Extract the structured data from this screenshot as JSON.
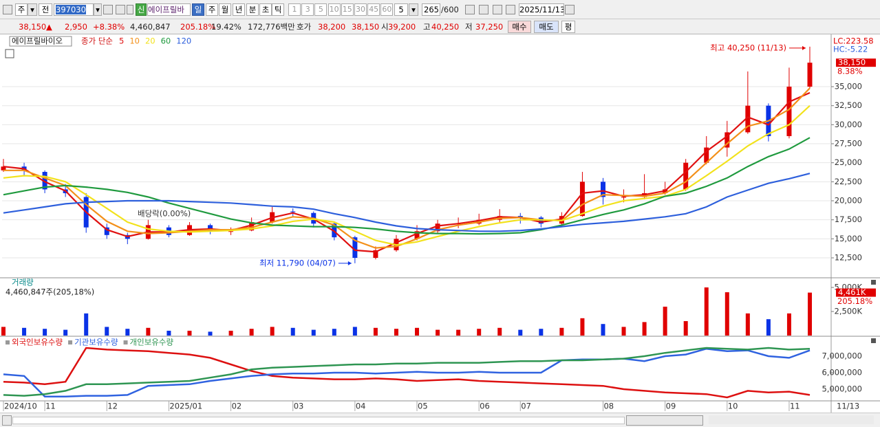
{
  "toolbar": {
    "market": "주",
    "scope": "전",
    "code": "397030",
    "badge": "신",
    "name": "에이프릴바",
    "periods": [
      "일",
      "주",
      "월",
      "년",
      "분",
      "초",
      "틱"
    ],
    "intervals": [
      "1",
      "3",
      "5",
      "10",
      "15",
      "30",
      "45",
      "60"
    ],
    "interval_value": "5",
    "count": "265",
    "count_max": "/600",
    "date": "2025/11/13"
  },
  "quote_bar": {
    "price": "38,150",
    "arrow": "▲",
    "change": "2,950",
    "change_rate": "+8.38%",
    "volume": "4,460,847",
    "volume_ratio": "205.18%",
    "turnover": "19.42%",
    "amount": "172,776백만",
    "quote_label": "호가",
    "ask": "38,200",
    "bid": "38,150",
    "open_label": "시",
    "open": "39,200",
    "high_label": "고",
    "high": "40,250",
    "low_label": "저",
    "low": "37,250",
    "buy": "매수",
    "sell": "매도",
    "avg": "평"
  },
  "chart_data": [
    {
      "type": "candlestick",
      "title": "에이프릴바이오",
      "ma_label": "종가 단순",
      "up_color": "#e00000",
      "down_color": "#0a32e6",
      "grid": true,
      "ylim": [
        9970,
        41690
      ],
      "yticks": [
        {
          "value": 12500,
          "label": "12,500"
        },
        {
          "value": 15000,
          "label": "15,000"
        },
        {
          "value": 17500,
          "label": "17,500"
        },
        {
          "value": 20000,
          "label": "20,000"
        },
        {
          "value": 22500,
          "label": "22,500"
        },
        {
          "value": 25000,
          "label": "25,000"
        },
        {
          "value": 27500,
          "label": "27,500"
        },
        {
          "value": 30000,
          "label": "30,000"
        },
        {
          "value": 32500,
          "label": "32,500"
        },
        {
          "value": 35000,
          "label": "35,000"
        }
      ],
      "open": [
        24000,
        24500,
        23800,
        21500,
        20500,
        16500,
        15500,
        15000,
        16500,
        15500,
        16800,
        16000,
        16100,
        17200,
        18600,
        18400,
        17000,
        15200,
        12500,
        13500,
        15000,
        16000,
        17000,
        17000,
        17500,
        18000,
        17800,
        17000,
        18000,
        22500,
        20500,
        20500,
        21000,
        21500,
        25000,
        27000,
        29000,
        32500,
        28500,
        35000
      ],
      "high": [
        25500,
        25000,
        24000,
        22200,
        21000,
        17000,
        15800,
        17500,
        16800,
        17200,
        17000,
        16500,
        17800,
        19200,
        19000,
        18600,
        17200,
        15400,
        14000,
        15500,
        16800,
        17500,
        17800,
        18300,
        18900,
        18400,
        18000,
        18500,
        23800,
        23000,
        21500,
        23500,
        22500,
        25500,
        28500,
        30500,
        37000,
        32800,
        37500,
        40250
      ],
      "low": [
        23800,
        23200,
        21000,
        20500,
        15800,
        15000,
        14300,
        14900,
        15200,
        15400,
        15600,
        15500,
        16000,
        17000,
        17800,
        16500,
        14800,
        11790,
        12300,
        13300,
        14800,
        15800,
        16400,
        16800,
        17200,
        17000,
        16500,
        16800,
        17900,
        19500,
        19800,
        20200,
        20800,
        21300,
        24800,
        25800,
        28800,
        27800,
        28200,
        34800
      ],
      "close": [
        24500,
        24000,
        21500,
        21000,
        16500,
        15500,
        15000,
        16800,
        15500,
        16800,
        16000,
        16000,
        17200,
        18500,
        18500,
        17000,
        15200,
        12500,
        13500,
        15000,
        16000,
        17000,
        17000,
        17500,
        18000,
        17800,
        17000,
        18000,
        22500,
        20500,
        20500,
        21000,
        21500,
        25000,
        27000,
        29000,
        32500,
        28500,
        35000,
        38150
      ],
      "series": [
        {
          "name": "5",
          "color": "#e01010",
          "values": [
            24500,
            24200,
            22500,
            21300,
            18500,
            16200,
            15300,
            15900,
            15900,
            16200,
            16300,
            16100,
            16800,
            17800,
            18400,
            17600,
            16000,
            13500,
            13300,
            14500,
            15700,
            16700,
            17000,
            17400,
            17900,
            17800,
            17200,
            17600,
            21000,
            21300,
            20600,
            20800,
            21300,
            23800,
            26500,
            28500,
            31000,
            30000,
            33000,
            34200
          ]
        },
        {
          "name": "10",
          "color": "#f39019",
          "values": [
            24000,
            24000,
            23000,
            22000,
            19500,
            17300,
            16000,
            15700,
            15800,
            16000,
            16200,
            16200,
            16500,
            17200,
            17900,
            17700,
            16800,
            14800,
            13800,
            14000,
            15000,
            16200,
            16800,
            17200,
            17700,
            17800,
            17500,
            17400,
            19500,
            20800,
            20700,
            20600,
            21000,
            22500,
            25000,
            27500,
            29800,
            30500,
            32000,
            34800
          ]
        },
        {
          "name": "20",
          "color": "#f2e21c",
          "values": [
            23000,
            23300,
            23200,
            22500,
            20800,
            19000,
            17200,
            16300,
            16000,
            15900,
            16000,
            16100,
            16300,
            16700,
            17300,
            17600,
            17200,
            16000,
            14800,
            14200,
            14600,
            15300,
            16000,
            16600,
            17100,
            17500,
            17500,
            17400,
            18300,
            19300,
            20000,
            20300,
            20600,
            21500,
            23300,
            25200,
            27200,
            28800,
            30000,
            32500
          ]
        },
        {
          "name": "60",
          "color": "#1f9a3e",
          "values": [
            20800,
            21300,
            21800,
            22000,
            21800,
            21500,
            21100,
            20500,
            19700,
            19000,
            18300,
            17600,
            17100,
            16800,
            16700,
            16600,
            16600,
            16500,
            16300,
            16000,
            15800,
            15700,
            15700,
            15650,
            15700,
            15800,
            16200,
            16800,
            17500,
            18200,
            18800,
            19600,
            20600,
            21000,
            21900,
            23000,
            24500,
            25800,
            26800,
            28300
          ]
        },
        {
          "name": "120",
          "color": "#2d5fdc",
          "values": [
            18400,
            18800,
            19200,
            19600,
            19800,
            19900,
            20000,
            20000,
            20000,
            19900,
            19800,
            19700,
            19500,
            19300,
            19200,
            18900,
            18300,
            17800,
            17200,
            16700,
            16350,
            16200,
            16100,
            16000,
            16000,
            16100,
            16300,
            16600,
            16900,
            17100,
            17300,
            17600,
            17900,
            18300,
            19200,
            20500,
            21400,
            22300,
            22900,
            23600
          ]
        }
      ],
      "lc_label": "LC:223.58",
      "hc_label": "HC:-5.22",
      "last_label": "38,150",
      "change_label": "8.38%",
      "high_annotation": "최고 40,250 (11/13)",
      "low_annotation": "최저 11,790 (04/07)",
      "dividend_annotation": "배당락(0.00%)"
    },
    {
      "type": "bar",
      "title": "거래량",
      "subtitle": "4,460,847주(205,18%)",
      "ylim": [
        0,
        5930
      ],
      "yticks": [
        {
          "value": 2500,
          "label": "2,500K"
        },
        {
          "value": 5000,
          "label": "5,000K"
        }
      ],
      "values": [
        900,
        800,
        700,
        600,
        2300,
        900,
        700,
        800,
        500,
        500,
        400,
        500,
        700,
        900,
        800,
        600,
        700,
        900,
        800,
        700,
        800,
        600,
        600,
        700,
        800,
        600,
        700,
        800,
        1800,
        1200,
        900,
        1400,
        3000,
        1500,
        5000,
        4500,
        2300,
        1700,
        2300,
        4461
      ],
      "last_label": "4,461K",
      "ratio_label": "205.18%"
    },
    {
      "type": "line",
      "ylim": [
        4333333,
        8166667
      ],
      "yticks": [
        {
          "value": 5000000,
          "label": "5,000,000"
        },
        {
          "value": 6000000,
          "label": "6,000,000"
        },
        {
          "value": 7000000,
          "label": "7,000,000"
        }
      ],
      "categories": [
        "2024/10",
        null,
        "11",
        null,
        null,
        "12",
        null,
        null,
        "2025/01",
        null,
        null,
        "02",
        null,
        null,
        "03",
        null,
        null,
        "04",
        null,
        null,
        "05",
        null,
        null,
        "06",
        null,
        "07",
        null,
        null,
        null,
        "08",
        null,
        null,
        "09",
        null,
        null,
        "10",
        null,
        null,
        "11",
        null
      ],
      "current_date": "11/13",
      "series": [
        {
          "name": "외국인보유수량",
          "color": "#dd1010",
          "values": [
            5450000,
            5400000,
            5300000,
            5450000,
            7500000,
            7400000,
            7350000,
            7300000,
            7200000,
            7100000,
            6900000,
            6500000,
            6100000,
            5800000,
            5700000,
            5650000,
            5600000,
            5600000,
            5650000,
            5600000,
            5500000,
            5550000,
            5600000,
            5500000,
            5450000,
            5400000,
            5350000,
            5300000,
            5250000,
            5200000,
            5000000,
            4900000,
            4800000,
            4750000,
            4700000,
            4500000,
            4900000,
            4800000,
            4850000,
            4650000
          ]
        },
        {
          "name": "기관보유수량",
          "color": "#2f62e0",
          "values": [
            5900000,
            5800000,
            4550000,
            4550000,
            4600000,
            4600000,
            4650000,
            5200000,
            5250000,
            5300000,
            5500000,
            5650000,
            5800000,
            5900000,
            5950000,
            5950000,
            6000000,
            6000000,
            5950000,
            6000000,
            6050000,
            6000000,
            6000000,
            6050000,
            6000000,
            6000000,
            6000000,
            6750000,
            6800000,
            6800000,
            6850000,
            6700000,
            7000000,
            7100000,
            7450000,
            7300000,
            7350000,
            7000000,
            6900000,
            7350000
          ]
        },
        {
          "name": "개인보유수량",
          "color": "#2e9552",
          "values": [
            4650000,
            4600000,
            4700000,
            4900000,
            5300000,
            5300000,
            5350000,
            5400000,
            5450000,
            5500000,
            5700000,
            5900000,
            6200000,
            6300000,
            6350000,
            6400000,
            6450000,
            6500000,
            6500000,
            6550000,
            6550000,
            6600000,
            6600000,
            6600000,
            6650000,
            6700000,
            6700000,
            6750000,
            6750000,
            6800000,
            6850000,
            7000000,
            7200000,
            7350000,
            7500000,
            7450000,
            7400000,
            7500000,
            7400000,
            7450000
          ]
        }
      ]
    }
  ]
}
